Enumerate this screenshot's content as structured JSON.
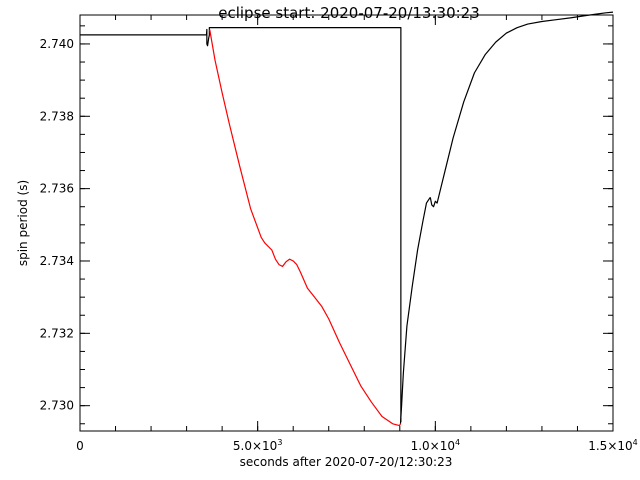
{
  "chart_data": {
    "type": "line",
    "title": "eclipse start: 2020-07-20/13:30:23",
    "xlabel": "seconds after 2020-07-20/12:30:23",
    "ylabel": "spin period (s)",
    "xlim": [
      0,
      15000
    ],
    "ylim": [
      2.7293,
      2.7408
    ],
    "grid": false,
    "x_ticks": [
      {
        "value": 0,
        "mantissa": "0",
        "exponent": ""
      },
      {
        "value": 5000,
        "mantissa": "5.0×10",
        "exponent": "3"
      },
      {
        "value": 10000,
        "mantissa": "1.0×10",
        "exponent": "4"
      },
      {
        "value": 15000,
        "mantissa": "1.5×10",
        "exponent": "4"
      }
    ],
    "x_minor_step": 1000,
    "y_ticks": [
      {
        "value": 2.73,
        "label": "2.730"
      },
      {
        "value": 2.732,
        "label": "2.732"
      },
      {
        "value": 2.734,
        "label": "2.734"
      },
      {
        "value": 2.736,
        "label": "2.736"
      },
      {
        "value": 2.738,
        "label": "2.738"
      },
      {
        "value": 2.74,
        "label": "2.740"
      }
    ],
    "y_minor_step": 0.0005,
    "series": [
      {
        "color": "#000000",
        "x": [
          0,
          3050,
          3560,
          3570,
          3570,
          3590,
          3620,
          3640,
          3640,
          3650,
          3650,
          9030,
          9030
        ],
        "y": [
          2.74025,
          2.74025,
          2.74025,
          2.7404,
          2.74,
          2.73995,
          2.74015,
          2.74025,
          2.74045,
          2.74045,
          2.74045,
          2.74045,
          2.72955
        ]
      },
      {
        "color": "#ff0000",
        "x": [
          3650,
          3800,
          4000,
          4200,
          4500,
          4800,
          5100,
          5200,
          5400,
          5500,
          5600,
          5700,
          5800,
          5900,
          6000,
          6100,
          6200,
          6400,
          6600,
          6800,
          7000,
          7300,
          7600,
          7900,
          8200,
          8500,
          8800,
          8990,
          9020
        ],
        "y": [
          2.7404,
          2.73955,
          2.73865,
          2.7378,
          2.7366,
          2.73545,
          2.73465,
          2.7345,
          2.7343,
          2.73405,
          2.7339,
          2.73385,
          2.73398,
          2.73405,
          2.734,
          2.7339,
          2.7337,
          2.73325,
          2.733,
          2.73275,
          2.7324,
          2.73175,
          2.73115,
          2.73055,
          2.7301,
          2.7297,
          2.7295,
          2.72945,
          2.7295
        ]
      },
      {
        "color": "#000000",
        "x": [
          9020,
          9050,
          9100,
          9200,
          9350,
          9500,
          9650,
          9750,
          9850,
          9860,
          9900,
          9950,
          10000,
          10050,
          10150,
          10300,
          10500,
          10800,
          11100,
          11400,
          11700,
          12000,
          12300,
          12600,
          13000,
          13400,
          13800,
          14200,
          14500,
          14800,
          15000
        ],
        "y": [
          2.7295,
          2.73,
          2.7309,
          2.7322,
          2.7333,
          2.7343,
          2.7351,
          2.7356,
          2.73575,
          2.73575,
          2.73555,
          2.7355,
          2.73565,
          2.7356,
          2.736,
          2.7366,
          2.7374,
          2.7384,
          2.7392,
          2.7397,
          2.74005,
          2.7403,
          2.74045,
          2.74055,
          2.74062,
          2.74067,
          2.74072,
          2.74078,
          2.74082,
          2.74086,
          2.74088
        ]
      }
    ]
  }
}
